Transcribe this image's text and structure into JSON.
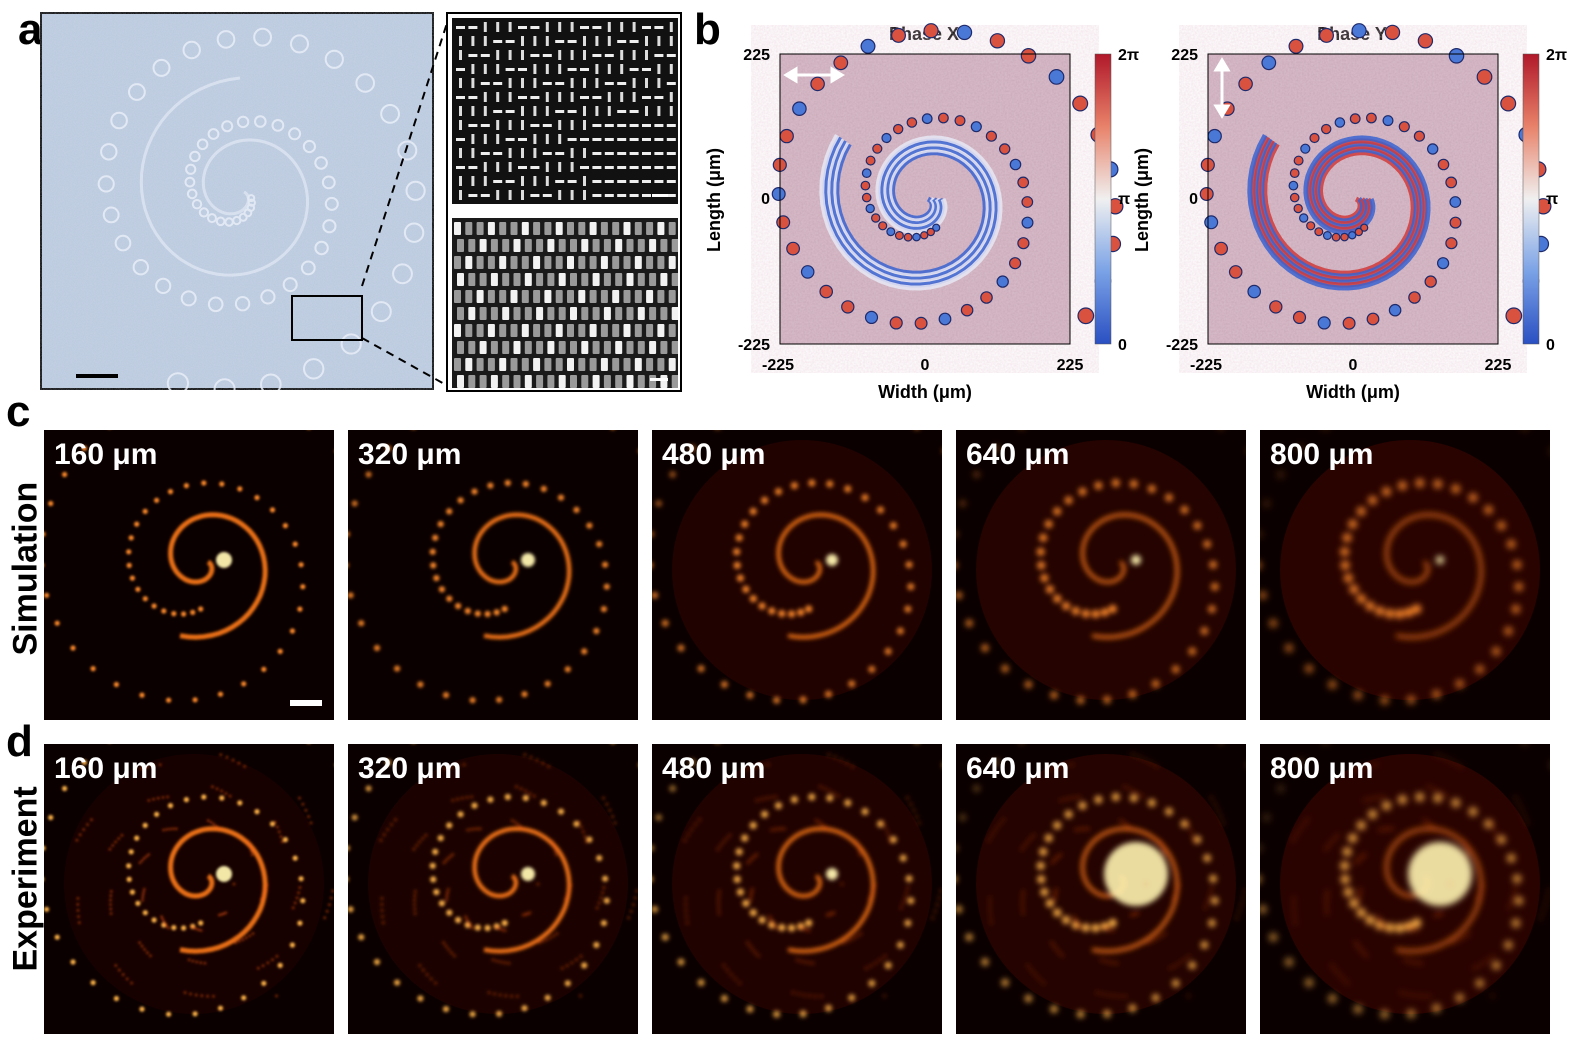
{
  "panel_labels": {
    "a": "a",
    "b": "b",
    "c": "c",
    "d": "d"
  },
  "panel_b": {
    "plots": [
      {
        "title": "Phase X",
        "polarization": "horizontal"
      },
      {
        "title": "Phase Y",
        "polarization": "vertical"
      }
    ],
    "xlabel": "Width (μm)",
    "ylabel": "Length (μm)",
    "x_ticks": [
      "-225",
      "0",
      "225"
    ],
    "y_ticks": [
      "225",
      "0",
      "-225"
    ],
    "colorbar_ticks": [
      "2π",
      "π",
      "0"
    ]
  },
  "rows": {
    "simulation": "Simulation",
    "experiment": "Experiment"
  },
  "distances": [
    "160 μm",
    "320 μm",
    "480 μm",
    "640 μm",
    "800 μm"
  ],
  "colors": {
    "micrograph": "#b7c7df",
    "field_bg": "#0b0000"
  }
}
